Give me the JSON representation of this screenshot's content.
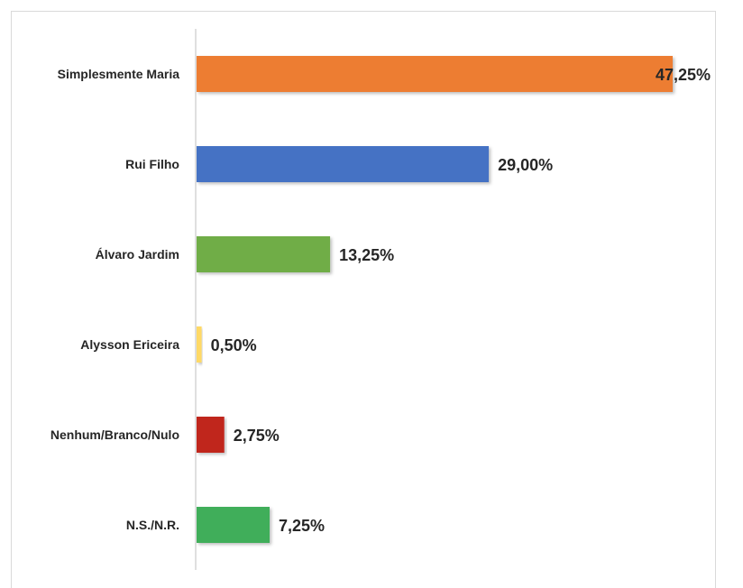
{
  "chart_data": {
    "type": "bar",
    "orientation": "horizontal",
    "categories": [
      "Simplesmente Maria",
      "Rui Filho",
      "Álvaro Jardim",
      "Alysson Ericeira",
      "Nenhum/Branco/Nulo",
      "N.S./N.R."
    ],
    "values": [
      47.25,
      29.0,
      13.25,
      0.5,
      2.75,
      7.25
    ],
    "value_labels": [
      "47,25%",
      "29,00%",
      "13,25%",
      "0,50%",
      "2,75%",
      "7,25%"
    ],
    "colors": [
      "#ed7d31",
      "#4472c4",
      "#70ad47",
      "#ffd966",
      "#c0261f",
      "#3fae5a"
    ],
    "xlim": [
      0,
      47.25
    ],
    "grid": false,
    "legend": "none",
    "title": "",
    "xlabel": "",
    "ylabel": ""
  }
}
